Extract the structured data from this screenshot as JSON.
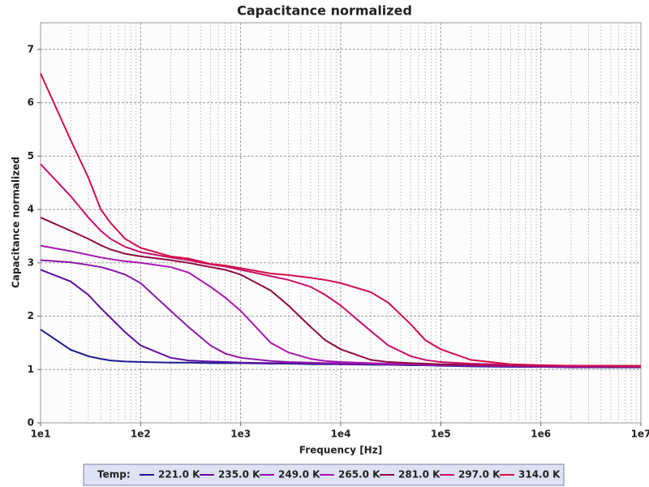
{
  "chart_data": {
    "type": "line",
    "title": "Capacitance normalized",
    "x_label": "Frequency [Hz]",
    "y_label": "Capacitance normalized",
    "legend_title": "Temp:",
    "legend_position": "bottom",
    "x_log": true,
    "grid": true,
    "minor_grid": true,
    "xlim": [
      10,
      10000000
    ],
    "ylim": [
      0,
      7.5
    ],
    "xticks": [
      {
        "value": 10,
        "label": "1e1"
      },
      {
        "value": 100,
        "label": "1e2"
      },
      {
        "value": 1000,
        "label": "1e3"
      },
      {
        "value": 10000,
        "label": "1e4"
      },
      {
        "value": 100000,
        "label": "1e5"
      },
      {
        "value": 1000000,
        "label": "1e6"
      },
      {
        "value": 10000000,
        "label": "1e7"
      }
    ],
    "yticks": [
      0,
      1,
      2,
      3,
      4,
      5,
      6,
      7
    ],
    "x": [
      10,
      20,
      30,
      40,
      50,
      70,
      100,
      200,
      300,
      500,
      700,
      1000,
      2000,
      3000,
      5000,
      7000,
      10000,
      20000,
      30000,
      50000,
      70000,
      100000,
      200000,
      500000,
      1000000,
      2000000,
      5000000,
      10000000
    ],
    "series": [
      {
        "name": "221.0 K",
        "color": "#1c1c8e",
        "values": [
          1.75,
          1.37,
          1.25,
          1.2,
          1.17,
          1.15,
          1.14,
          1.13,
          1.13,
          1.12,
          1.12,
          1.12,
          1.11,
          1.11,
          1.1,
          1.1,
          1.1,
          1.09,
          1.09,
          1.08,
          1.08,
          1.07,
          1.06,
          1.05,
          1.05,
          1.04,
          1.04,
          1.04
        ]
      },
      {
        "name": "235.0 K",
        "color": "#5e10a0",
        "values": [
          2.87,
          2.65,
          2.4,
          2.15,
          1.97,
          1.7,
          1.45,
          1.22,
          1.17,
          1.15,
          1.14,
          1.13,
          1.12,
          1.12,
          1.11,
          1.11,
          1.1,
          1.1,
          1.09,
          1.09,
          1.08,
          1.08,
          1.07,
          1.06,
          1.05,
          1.05,
          1.05,
          1.05
        ]
      },
      {
        "name": "249.0 K",
        "color": "#8a18a8",
        "values": [
          3.05,
          3.01,
          2.96,
          2.92,
          2.87,
          2.78,
          2.62,
          2.1,
          1.8,
          1.45,
          1.3,
          1.22,
          1.16,
          1.14,
          1.13,
          1.12,
          1.12,
          1.11,
          1.1,
          1.1,
          1.09,
          1.08,
          1.07,
          1.06,
          1.06,
          1.05,
          1.05,
          1.05
        ]
      },
      {
        "name": "265.0 K",
        "color": "#a818b0",
        "values": [
          3.32,
          3.22,
          3.15,
          3.1,
          3.07,
          3.03,
          3.0,
          2.92,
          2.82,
          2.55,
          2.35,
          2.1,
          1.5,
          1.32,
          1.2,
          1.16,
          1.14,
          1.12,
          1.11,
          1.1,
          1.1,
          1.09,
          1.08,
          1.07,
          1.06,
          1.06,
          1.05,
          1.05
        ]
      },
      {
        "name": "281.0 K",
        "color": "#8c0a40",
        "values": [
          3.85,
          3.6,
          3.45,
          3.33,
          3.25,
          3.17,
          3.12,
          3.05,
          3.0,
          2.92,
          2.87,
          2.78,
          2.48,
          2.2,
          1.8,
          1.55,
          1.38,
          1.18,
          1.14,
          1.12,
          1.11,
          1.1,
          1.09,
          1.08,
          1.07,
          1.07,
          1.06,
          1.06
        ]
      },
      {
        "name": "297.0 K",
        "color": "#c8106a",
        "values": [
          4.85,
          4.25,
          3.85,
          3.6,
          3.45,
          3.3,
          3.2,
          3.1,
          3.05,
          2.97,
          2.93,
          2.87,
          2.75,
          2.68,
          2.55,
          2.4,
          2.2,
          1.72,
          1.45,
          1.25,
          1.18,
          1.14,
          1.11,
          1.09,
          1.08,
          1.07,
          1.07,
          1.06
        ]
      },
      {
        "name": "314.0 K",
        "color": "#d0104a",
        "values": [
          6.55,
          5.3,
          4.6,
          4.0,
          3.75,
          3.45,
          3.28,
          3.12,
          3.08,
          2.98,
          2.95,
          2.9,
          2.8,
          2.77,
          2.72,
          2.68,
          2.62,
          2.45,
          2.25,
          1.85,
          1.55,
          1.38,
          1.18,
          1.1,
          1.08,
          1.07,
          1.07,
          1.07
        ]
      }
    ]
  }
}
